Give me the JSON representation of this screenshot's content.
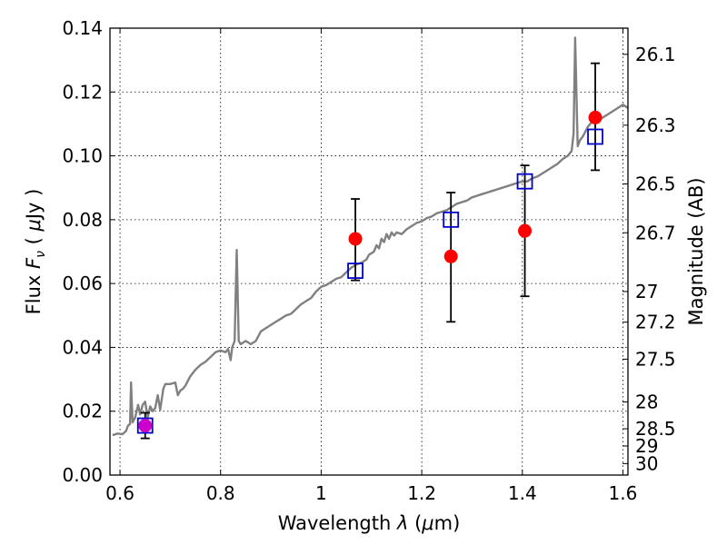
{
  "chart_data": {
    "type": "scatter",
    "xlabel_parts": [
      "Wavelength ",
      "λ",
      " (",
      "μ",
      "m)"
    ],
    "ylabel_parts": [
      "Flux ",
      "F",
      "ν",
      " ( ",
      "μ",
      "Jy )"
    ],
    "y2label": "Magnitude (AB)",
    "xlim": [
      0.58,
      1.61
    ],
    "ylim": [
      0.0,
      0.14
    ],
    "grid": true,
    "x_ticks": [
      {
        "value": 0.6,
        "label": "0.6"
      },
      {
        "value": 0.8,
        "label": "0.8"
      },
      {
        "value": 1.0,
        "label": "1"
      },
      {
        "value": 1.2,
        "label": "1.2"
      },
      {
        "value": 1.4,
        "label": "1.4"
      },
      {
        "value": 1.6,
        "label": "1.6"
      }
    ],
    "y_ticks": [
      {
        "value": 0.0,
        "label": "0.00"
      },
      {
        "value": 0.02,
        "label": "0.02"
      },
      {
        "value": 0.04,
        "label": "0.04"
      },
      {
        "value": 0.06,
        "label": "0.06"
      },
      {
        "value": 0.08,
        "label": "0.08"
      },
      {
        "value": 0.1,
        "label": "0.10"
      },
      {
        "value": 0.12,
        "label": "0.12"
      },
      {
        "value": 0.14,
        "label": "0.14"
      }
    ],
    "y2_ticks": [
      {
        "flux": 0.1318,
        "label": "26.1"
      },
      {
        "flux": 0.1096,
        "label": "26.3"
      },
      {
        "flux": 0.0912,
        "label": "26.5"
      },
      {
        "flux": 0.0759,
        "label": "26.7"
      },
      {
        "flux": 0.0575,
        "label": "27"
      },
      {
        "flux": 0.0479,
        "label": "27.2"
      },
      {
        "flux": 0.0363,
        "label": "27.5"
      },
      {
        "flux": 0.0229,
        "label": "28"
      },
      {
        "flux": 0.0145,
        "label": "28.5"
      },
      {
        "flux": 0.0091,
        "label": "29"
      },
      {
        "flux": 0.0036,
        "label": "30"
      }
    ],
    "series": [
      {
        "kind": "line",
        "color": "#808080",
        "points": [
          [
            0.585,
            0.0125
          ],
          [
            0.595,
            0.013
          ],
          [
            0.605,
            0.0128
          ],
          [
            0.612,
            0.0138
          ],
          [
            0.616,
            0.0155
          ],
          [
            0.62,
            0.016
          ],
          [
            0.622,
            0.029
          ],
          [
            0.625,
            0.0165
          ],
          [
            0.63,
            0.018
          ],
          [
            0.636,
            0.022
          ],
          [
            0.64,
            0.019
          ],
          [
            0.645,
            0.022
          ],
          [
            0.65,
            0.023
          ],
          [
            0.655,
            0.018
          ],
          [
            0.66,
            0.0215
          ],
          [
            0.665,
            0.02
          ],
          [
            0.67,
            0.021
          ],
          [
            0.675,
            0.025
          ],
          [
            0.68,
            0.0205
          ],
          [
            0.686,
            0.027
          ],
          [
            0.69,
            0.0285
          ],
          [
            0.7,
            0.0285
          ],
          [
            0.71,
            0.029
          ],
          [
            0.715,
            0.025
          ],
          [
            0.72,
            0.0265
          ],
          [
            0.725,
            0.027
          ],
          [
            0.73,
            0.028
          ],
          [
            0.74,
            0.031
          ],
          [
            0.75,
            0.033
          ],
          [
            0.76,
            0.0345
          ],
          [
            0.77,
            0.0355
          ],
          [
            0.78,
            0.037
          ],
          [
            0.79,
            0.0385
          ],
          [
            0.8,
            0.039
          ],
          [
            0.81,
            0.0385
          ],
          [
            0.815,
            0.0395
          ],
          [
            0.82,
            0.036
          ],
          [
            0.823,
            0.04
          ],
          [
            0.828,
            0.042
          ],
          [
            0.832,
            0.0705
          ],
          [
            0.836,
            0.042
          ],
          [
            0.84,
            0.041
          ],
          [
            0.85,
            0.042
          ],
          [
            0.86,
            0.041
          ],
          [
            0.87,
            0.042
          ],
          [
            0.88,
            0.045
          ],
          [
            0.89,
            0.046
          ],
          [
            0.9,
            0.047
          ],
          [
            0.91,
            0.048
          ],
          [
            0.92,
            0.049
          ],
          [
            0.93,
            0.05
          ],
          [
            0.94,
            0.0505
          ],
          [
            0.95,
            0.052
          ],
          [
            0.96,
            0.0535
          ],
          [
            0.97,
            0.0545
          ],
          [
            0.98,
            0.0555
          ],
          [
            0.99,
            0.0575
          ],
          [
            1.0,
            0.059
          ],
          [
            1.01,
            0.0595
          ],
          [
            1.02,
            0.0605
          ],
          [
            1.03,
            0.0615
          ],
          [
            1.04,
            0.062
          ],
          [
            1.05,
            0.0635
          ],
          [
            1.06,
            0.065
          ],
          [
            1.07,
            0.066
          ],
          [
            1.08,
            0.0665
          ],
          [
            1.09,
            0.0675
          ],
          [
            1.095,
            0.069
          ],
          [
            1.1,
            0.0695
          ],
          [
            1.105,
            0.07
          ],
          [
            1.11,
            0.072
          ],
          [
            1.115,
            0.071
          ],
          [
            1.12,
            0.074
          ],
          [
            1.125,
            0.073
          ],
          [
            1.13,
            0.0755
          ],
          [
            1.135,
            0.074
          ],
          [
            1.14,
            0.076
          ],
          [
            1.145,
            0.075
          ],
          [
            1.15,
            0.076
          ],
          [
            1.16,
            0.0755
          ],
          [
            1.17,
            0.077
          ],
          [
            1.18,
            0.078
          ],
          [
            1.19,
            0.079
          ],
          [
            1.2,
            0.0795
          ],
          [
            1.21,
            0.0805
          ],
          [
            1.22,
            0.081
          ],
          [
            1.23,
            0.082
          ],
          [
            1.24,
            0.0825
          ],
          [
            1.25,
            0.083
          ],
          [
            1.26,
            0.084
          ],
          [
            1.27,
            0.085
          ],
          [
            1.28,
            0.0855
          ],
          [
            1.29,
            0.086
          ],
          [
            1.3,
            0.087
          ],
          [
            1.31,
            0.0875
          ],
          [
            1.32,
            0.088
          ],
          [
            1.33,
            0.0885
          ],
          [
            1.34,
            0.089
          ],
          [
            1.35,
            0.0895
          ],
          [
            1.36,
            0.09
          ],
          [
            1.37,
            0.0905
          ],
          [
            1.38,
            0.091
          ],
          [
            1.39,
            0.0915
          ],
          [
            1.4,
            0.092
          ],
          [
            1.41,
            0.092
          ],
          [
            1.42,
            0.093
          ],
          [
            1.43,
            0.0935
          ],
          [
            1.44,
            0.0945
          ],
          [
            1.45,
            0.0955
          ],
          [
            1.46,
            0.0965
          ],
          [
            1.47,
            0.0975
          ],
          [
            1.48,
            0.099
          ],
          [
            1.49,
            0.1
          ],
          [
            1.498,
            0.1015
          ],
          [
            1.502,
            0.107
          ],
          [
            1.505,
            0.137
          ],
          [
            1.51,
            0.103
          ],
          [
            1.515,
            0.105
          ],
          [
            1.52,
            0.106
          ],
          [
            1.53,
            0.109
          ],
          [
            1.54,
            0.111
          ],
          [
            1.55,
            0.111
          ],
          [
            1.56,
            0.112
          ],
          [
            1.57,
            0.113
          ],
          [
            1.58,
            0.114
          ],
          [
            1.59,
            0.115
          ],
          [
            1.6,
            0.116
          ],
          [
            1.61,
            0.115
          ]
        ]
      },
      {
        "kind": "errorbar",
        "color": "#000000",
        "points": [
          {
            "x": 0.65,
            "low": 0.0115,
            "high": 0.0195
          },
          {
            "x": 1.068,
            "low": 0.061,
            "high": 0.0865
          },
          {
            "x": 1.258,
            "low": 0.048,
            "high": 0.0885
          },
          {
            "x": 1.405,
            "low": 0.056,
            "high": 0.097
          },
          {
            "x": 1.545,
            "low": 0.0955,
            "high": 0.129
          }
        ]
      },
      {
        "kind": "markers",
        "marker": "square",
        "color": "#0000cc",
        "points": [
          {
            "x": 0.65,
            "y": 0.0155
          },
          {
            "x": 1.068,
            "y": 0.064
          },
          {
            "x": 1.258,
            "y": 0.08
          },
          {
            "x": 1.405,
            "y": 0.092
          },
          {
            "x": 1.545,
            "y": 0.106
          }
        ]
      },
      {
        "kind": "markers",
        "marker": "circle",
        "color": "#ff0000",
        "points": [
          {
            "x": 0.65,
            "y": 0.0155,
            "color": "#cc00cc"
          },
          {
            "x": 1.068,
            "y": 0.074
          },
          {
            "x": 1.258,
            "y": 0.0685
          },
          {
            "x": 1.405,
            "y": 0.0765
          },
          {
            "x": 1.545,
            "y": 0.112
          }
        ]
      }
    ]
  }
}
